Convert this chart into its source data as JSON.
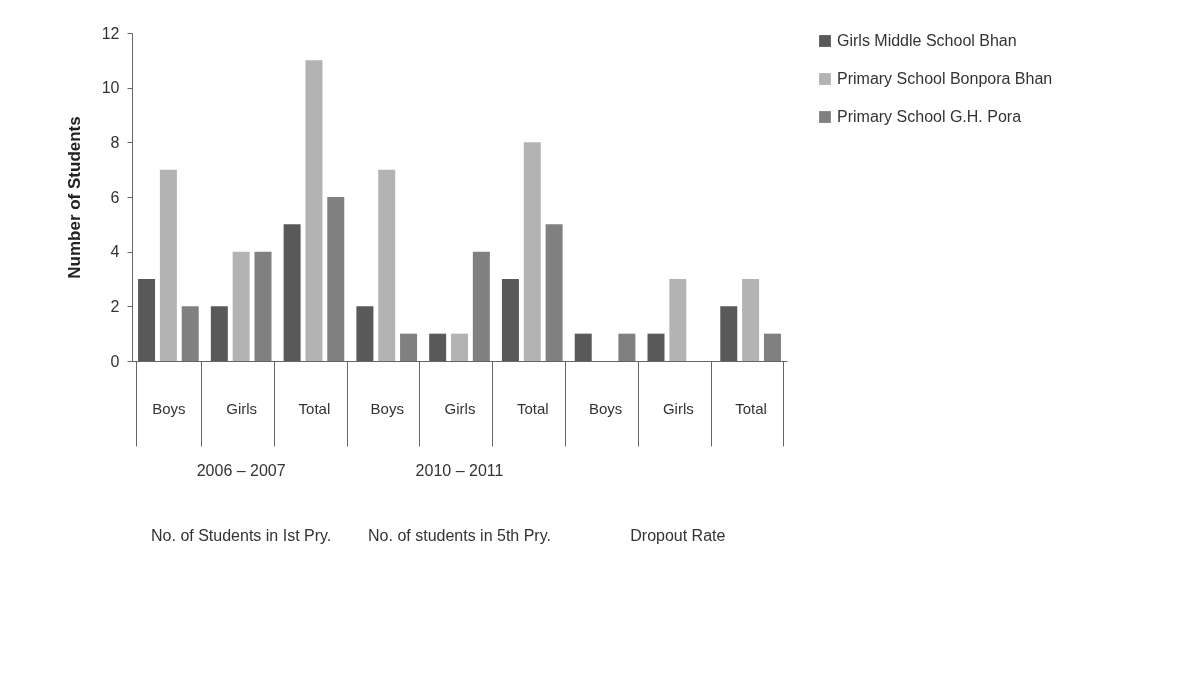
{
  "chart_data": {
    "type": "bar",
    "ylabel": "Number of Students",
    "categories": [
      "Boys",
      "Girls",
      "Total",
      "Boys",
      "Girls",
      "Total",
      "Boys",
      "Girls",
      "Total"
    ],
    "series": [
      {
        "name": "Girls Middle School Bhan",
        "color": "#595959",
        "values": [
          3,
          2,
          5,
          2,
          1,
          3,
          1,
          1,
          2
        ]
      },
      {
        "name": "Primary School Bonpora Bhan",
        "color": "#b3b3b3",
        "values": [
          7,
          4,
          11,
          7,
          1,
          8,
          0,
          3,
          3
        ]
      },
      {
        "name": "Primary School G.H. Pora",
        "color": "#808080",
        "values": [
          2,
          4,
          6,
          1,
          4,
          5,
          1,
          0,
          1
        ]
      }
    ],
    "ylim": [
      0,
      12
    ],
    "yticks": [
      0,
      2,
      4,
      6,
      8,
      10,
      12
    ],
    "grid": false,
    "legend": "top right",
    "annotations": [
      "2006 – 2007",
      "2010 – 2011",
      "No. of Students in Ist Pry.",
      "No. of students in 5th Pry.",
      "Dropout Rate"
    ]
  }
}
